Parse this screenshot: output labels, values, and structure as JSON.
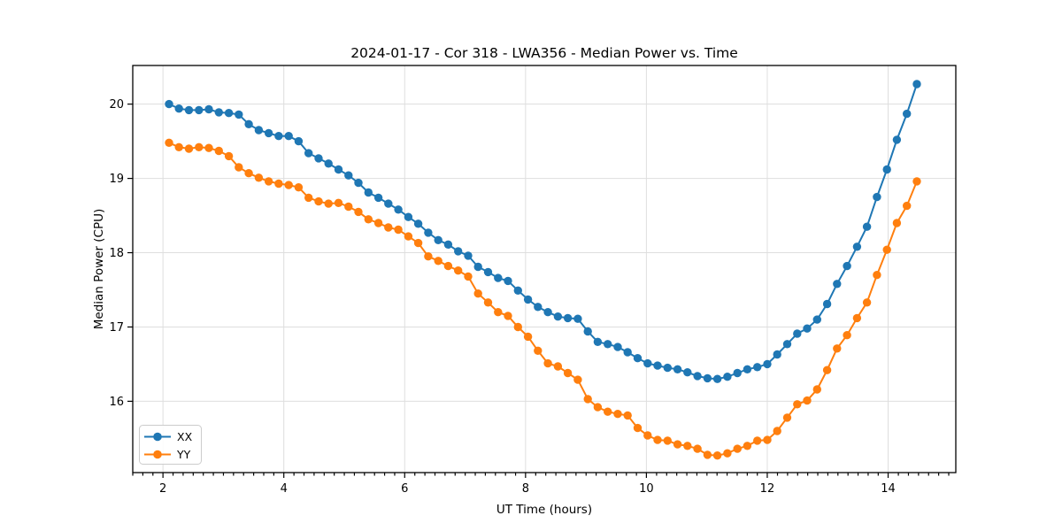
{
  "chart_data": {
    "type": "line",
    "title": "2024-01-17 - Cor 318 - LWA356 - Median Power vs. Time",
    "xlabel": "UT Time (hours)",
    "ylabel": "Median Power (CPU)",
    "xlim": [
      1.5,
      15.12
    ],
    "ylim": [
      15.04,
      20.52
    ],
    "xticks": [
      2,
      4,
      6,
      8,
      10,
      12,
      14
    ],
    "yticks": [
      16,
      17,
      18,
      19,
      20
    ],
    "x_minor_step": 0.1667,
    "grid": true,
    "grid_color": "#dedede",
    "spine_color": "#000000",
    "background": "#ffffff",
    "legend_position": "lower left",
    "marker": "circle",
    "x": [
      2.1,
      2.265,
      2.43,
      2.595,
      2.76,
      2.925,
      3.09,
      3.255,
      3.42,
      3.585,
      3.75,
      3.915,
      4.08,
      4.245,
      4.41,
      4.575,
      4.74,
      4.905,
      5.07,
      5.235,
      5.4,
      5.565,
      5.73,
      5.895,
      6.06,
      6.225,
      6.39,
      6.555,
      6.72,
      6.885,
      7.05,
      7.215,
      7.38,
      7.545,
      7.71,
      7.875,
      8.04,
      8.205,
      8.37,
      8.535,
      8.7,
      8.865,
      9.03,
      9.195,
      9.36,
      9.525,
      9.69,
      9.855,
      10.02,
      10.185,
      10.35,
      10.515,
      10.68,
      10.845,
      11.01,
      11.175,
      11.34,
      11.505,
      11.67,
      11.835,
      12.0,
      12.165,
      12.33,
      12.495,
      12.66,
      12.825,
      12.99,
      13.155,
      13.32,
      13.485,
      13.65,
      13.815,
      13.98,
      14.145,
      14.31,
      14.475
    ],
    "series": [
      {
        "name": "XX",
        "color": "#1f77b4",
        "values": [
          20.0,
          19.94,
          19.92,
          19.92,
          19.93,
          19.89,
          19.88,
          19.86,
          19.73,
          19.65,
          19.61,
          19.57,
          19.57,
          19.5,
          19.34,
          19.27,
          19.2,
          19.12,
          19.04,
          18.94,
          18.81,
          18.74,
          18.66,
          18.58,
          18.48,
          18.39,
          18.27,
          18.17,
          18.11,
          18.02,
          17.96,
          17.81,
          17.74,
          17.66,
          17.62,
          17.49,
          17.37,
          17.27,
          17.2,
          17.14,
          17.12,
          17.11,
          16.94,
          16.8,
          16.77,
          16.73,
          16.66,
          16.58,
          16.51,
          16.48,
          16.45,
          16.43,
          16.39,
          16.34,
          16.31,
          16.3,
          16.33,
          16.38,
          16.43,
          16.46,
          16.5,
          16.63,
          16.77,
          16.91,
          16.98,
          17.1,
          17.31,
          17.58,
          17.82,
          18.08,
          18.35,
          18.75,
          19.12,
          19.52,
          19.87,
          20.27
        ]
      },
      {
        "name": "YY",
        "color": "#ff7f0e",
        "values": [
          19.48,
          19.42,
          19.4,
          19.42,
          19.41,
          19.37,
          19.3,
          19.15,
          19.07,
          19.01,
          18.96,
          18.93,
          18.91,
          18.88,
          18.74,
          18.69,
          18.66,
          18.67,
          18.62,
          18.55,
          18.45,
          18.4,
          18.34,
          18.31,
          18.22,
          18.13,
          17.95,
          17.89,
          17.82,
          17.76,
          17.68,
          17.45,
          17.33,
          17.2,
          17.15,
          17.0,
          16.87,
          16.68,
          16.51,
          16.47,
          16.38,
          16.29,
          16.03,
          15.92,
          15.86,
          15.83,
          15.81,
          15.64,
          15.54,
          15.48,
          15.47,
          15.42,
          15.4,
          15.36,
          15.28,
          15.27,
          15.3,
          15.36,
          15.4,
          15.47,
          15.48,
          15.6,
          15.78,
          15.96,
          16.01,
          16.16,
          16.42,
          16.71,
          16.89,
          17.12,
          17.33,
          17.7,
          18.04,
          18.4,
          18.63,
          18.96
        ]
      }
    ]
  }
}
